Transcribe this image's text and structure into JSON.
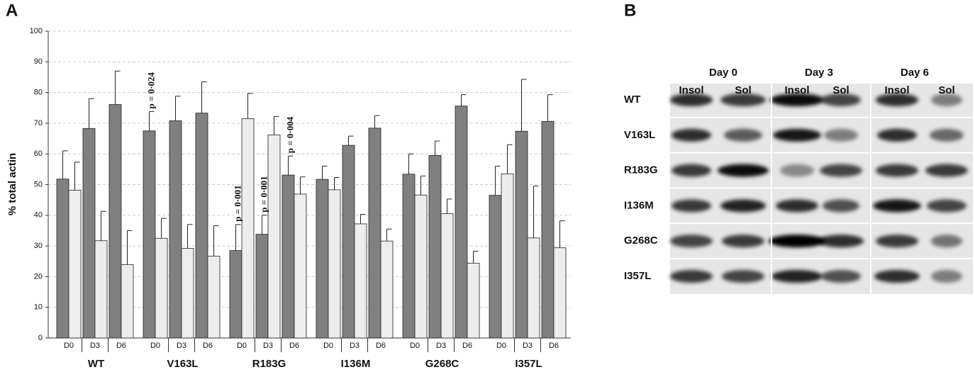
{
  "chart_data": {
    "type": "bar",
    "panel_label": "A",
    "ylabel": "% total actin",
    "groups": [
      "WT",
      "V163L",
      "R183G",
      "I136M",
      "G268C",
      "I357L"
    ],
    "categories": [
      "D0",
      "D3",
      "D6",
      "D0",
      "D3",
      "D6",
      "D0",
      "D3",
      "D6",
      "D0",
      "D3",
      "D6",
      "D0",
      "D3",
      "D6",
      "D0",
      "D3",
      "D6"
    ],
    "series": [
      {
        "color": "#808080",
        "values": [
          51.8,
          68.3,
          76.1,
          67.5,
          70.8,
          73.3,
          28.5,
          33.8,
          53.1,
          51.7,
          62.8,
          68.4,
          53.4,
          59.5,
          75.6,
          46.5,
          67.4,
          70.6
        ],
        "errors": [
          9.2,
          9.7,
          10.9,
          6.3,
          8,
          10.2,
          8.5,
          6.2,
          6.2,
          4.3,
          3,
          4.1,
          6.6,
          4.7,
          3.7,
          9.5,
          16.9,
          8.7
        ]
      },
      {
        "color": "#ededed",
        "values": [
          48.2,
          31.7,
          23.9,
          32.5,
          29.2,
          26.7,
          71.5,
          66.2,
          46.9,
          48.3,
          37.2,
          31.6,
          46.6,
          40.5,
          24.4,
          53.5,
          32.6,
          29.4
        ],
        "errors": [
          9.1,
          9.6,
          11.1,
          6.5,
          7.8,
          9.9,
          8.2,
          6,
          5.6,
          4,
          3.1,
          3.9,
          6.2,
          4.8,
          3.9,
          9.5,
          16.9,
          8.8
        ]
      }
    ],
    "annotations": [
      null,
      null,
      null,
      "p = 0·024",
      null,
      null,
      "p = 0·001",
      "p = 0·001",
      "p = 0·004",
      null,
      null,
      null,
      null,
      null,
      null,
      null,
      null,
      null
    ],
    "ylim": [
      0,
      100
    ],
    "yticks": [
      0,
      10,
      20,
      30,
      40,
      50,
      60,
      70,
      80,
      90,
      100
    ],
    "grid": true
  },
  "blot": {
    "panel_label": "B",
    "days": [
      "Day 0",
      "Day 3",
      "Day 6"
    ],
    "lanes": [
      "Insol",
      "Sol",
      "Insol",
      "Sol",
      "Insol",
      "Sol"
    ],
    "rows": [
      "WT",
      "V163L",
      "R183G",
      "I136M",
      "G268C",
      "I357L"
    ]
  }
}
